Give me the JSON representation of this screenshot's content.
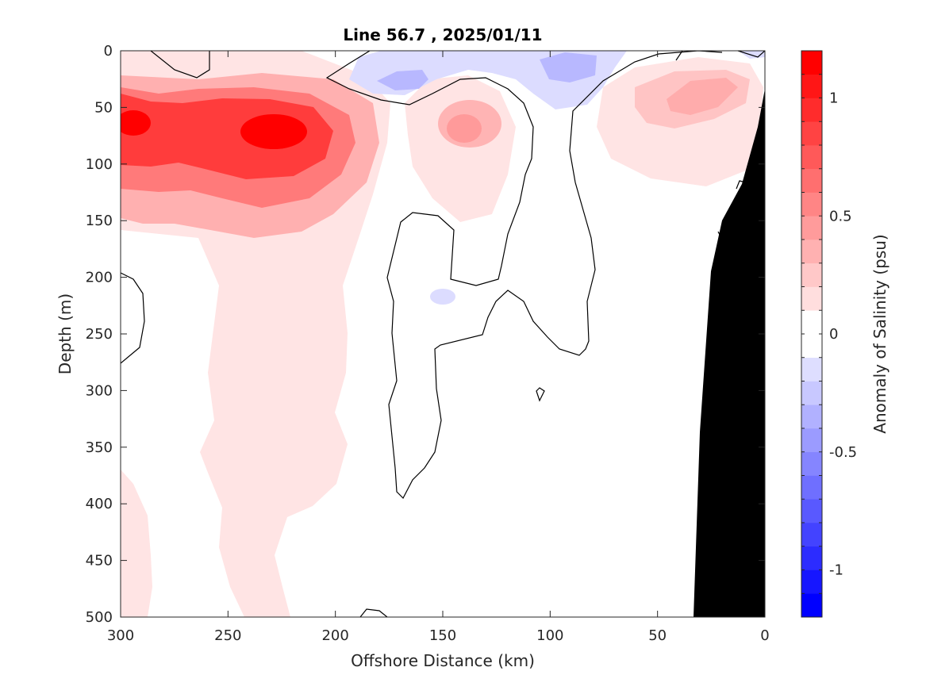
{
  "chart_data": {
    "type": "contour",
    "title": "Line 56.7 , 2025/01/11",
    "xlabel": "Offshore Distance (km)",
    "ylabel": "Depth (m)",
    "colorbar_label": "Anomaly of Salinity (psu)",
    "x_reversed": true,
    "y_reversed": true,
    "xlim": [
      0,
      300
    ],
    "ylim": [
      0,
      500
    ],
    "xticks": [
      300,
      250,
      200,
      150,
      100,
      50,
      0
    ],
    "yticks": [
      0,
      50,
      100,
      150,
      200,
      250,
      300,
      350,
      400,
      450,
      500
    ],
    "clim": [
      -1.2,
      1.2
    ],
    "colorbar_ticks": [
      1,
      0.5,
      0,
      -0.5,
      -1
    ],
    "contour_step": 0.1,
    "zero_contour_color": "#000000",
    "land_color": "#000000",
    "positive_color": "#ff0000",
    "negative_color": "#0000ff",
    "features": [
      {
        "kind": "positive",
        "x": 293,
        "depth": 62,
        "value": 1.1
      },
      {
        "kind": "positive",
        "x": 228,
        "depth": 75,
        "value": 1.1
      },
      {
        "kind": "positive",
        "x": 138,
        "depth": 70,
        "value": 0.4
      },
      {
        "kind": "positive",
        "x": 28,
        "depth": 40,
        "value": 0.35
      },
      {
        "kind": "negative",
        "x": 170,
        "depth": 25,
        "value": -0.3
      },
      {
        "kind": "negative",
        "x": 92,
        "depth": 15,
        "value": -0.3
      },
      {
        "kind": "negative",
        "x": 143,
        "depth": 215,
        "value": -0.1
      }
    ]
  }
}
